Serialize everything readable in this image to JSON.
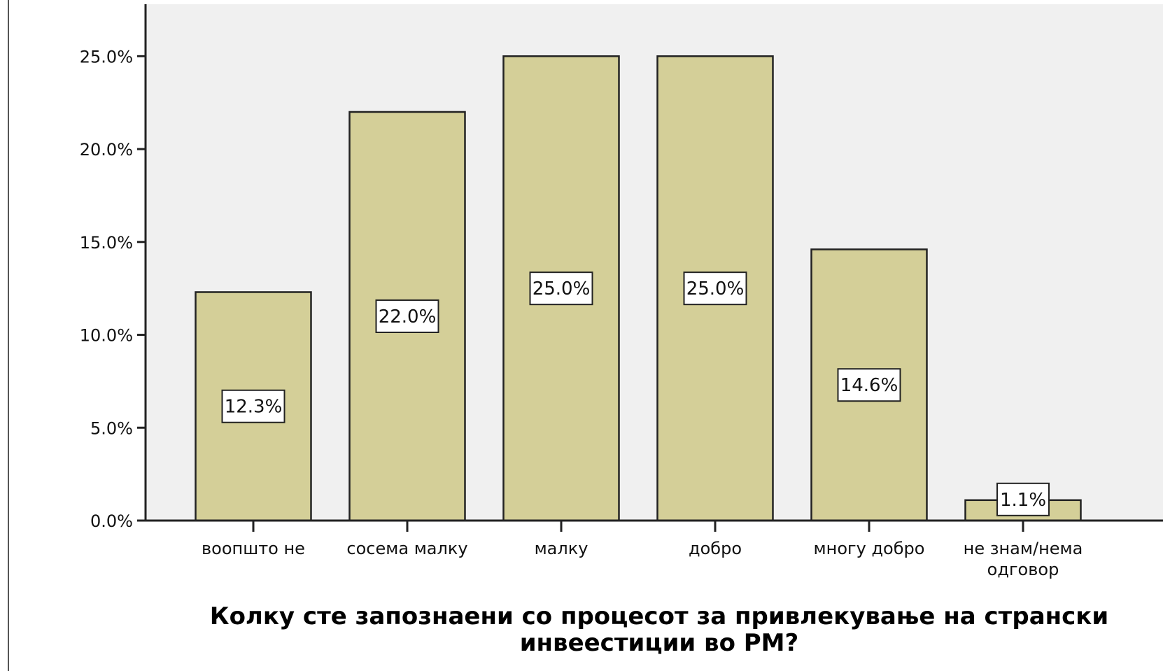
{
  "chart_data": {
    "type": "bar",
    "categories": [
      [
        "воопшто не"
      ],
      [
        "сосема малку"
      ],
      [
        "малку"
      ],
      [
        "добро"
      ],
      [
        "многу добро"
      ],
      [
        "не знам/нема",
        "одговор"
      ]
    ],
    "values": [
      12.3,
      22.0,
      25.0,
      25.0,
      14.6,
      1.1
    ],
    "value_labels": [
      "12.3%",
      "22.0%",
      "25.0%",
      "25.0%",
      "14.6%",
      "1.1%"
    ],
    "y_ticks": [
      0,
      5,
      10,
      15,
      20,
      25
    ],
    "y_tick_labels": [
      "0.0%",
      "5.0%",
      "10.0%",
      "15.0%",
      "20.0%",
      "25.0%"
    ],
    "ylim": [
      0,
      27.8
    ],
    "xlabel": [
      "Колку сте запознаени со процесот за привлекување на странски",
      "инвеестиции во РМ?"
    ],
    "ylabel": "",
    "grid": false,
    "bar_color": "#d4cf98",
    "plot_background": "#f0f0f0"
  }
}
